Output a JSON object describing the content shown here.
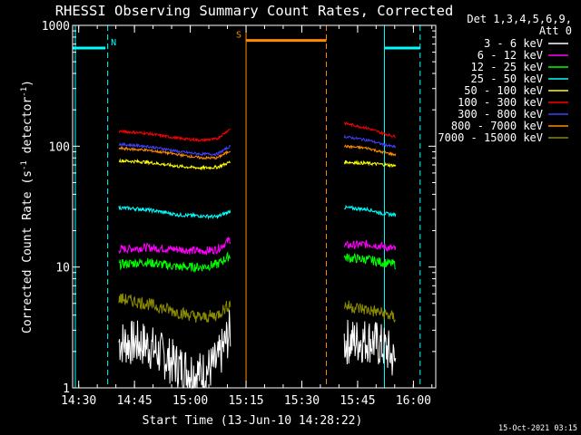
{
  "chart_data": {
    "type": "line",
    "title": "RHESSI Observing Summary Count Rates, Corrected",
    "xlabel": "Start Time (13-Jun-10 14:28:22)",
    "ylabel": "Corrected Count Rate (s⁻¹ detector⁻¹)",
    "ylabel_parts": {
      "pre": "Corrected Count Rate (s",
      "sup1": "-1",
      "mid": " detector",
      "sup2": "-1",
      "post": ")"
    },
    "yscale": "log",
    "xlim": [
      14.4728,
      16.1
    ],
    "ylim": [
      1,
      1000
    ],
    "xticks": [
      {
        "value": 14.5,
        "label": "14:30"
      },
      {
        "value": 14.75,
        "label": "14:45"
      },
      {
        "value": 15.0,
        "label": "15:00"
      },
      {
        "value": 15.25,
        "label": "15:15"
      },
      {
        "value": 15.5,
        "label": "15:30"
      },
      {
        "value": 15.75,
        "label": "15:45"
      },
      {
        "value": 16.0,
        "label": "16:00"
      }
    ],
    "yticks": [
      {
        "value": 1,
        "label": "1"
      },
      {
        "value": 10,
        "label": "10"
      },
      {
        "value": 100,
        "label": "100"
      },
      {
        "value": 1000,
        "label": "1000"
      }
    ],
    "legend_header": [
      "Det 1,3,4,5,6,9,",
      "Att 0"
    ],
    "legend_position": "right",
    "footer_timestamp": "15-Oct-2021 03:15",
    "series": [
      {
        "name": "3 - 6 keV",
        "color": "#ffffff",
        "segments": [
          {
            "x": [
              14.68,
              14.8,
              14.95,
              15.05,
              15.12,
              15.18
            ],
            "y": [
              2.4,
              2.3,
              1.5,
              1.3,
              1.6,
              3.0
            ]
          },
          {
            "x": [
              15.69,
              15.8,
              15.88,
              15.92
            ],
            "y": [
              2.4,
              2.5,
              2.1,
              1.6
            ]
          }
        ]
      },
      {
        "name": "6 - 12 keV",
        "color": "#ff00ff",
        "segments": [
          {
            "x": [
              14.68,
              14.8,
              14.95,
              15.05,
              15.12,
              15.18
            ],
            "y": [
              14.0,
              14.5,
              14.0,
              13.5,
              14.0,
              17.0
            ]
          },
          {
            "x": [
              15.69,
              15.8,
              15.85,
              15.92
            ],
            "y": [
              15.0,
              15.5,
              15.0,
              14.0
            ]
          }
        ]
      },
      {
        "name": "12 - 25 keV",
        "color": "#00ff00",
        "segments": [
          {
            "x": [
              14.68,
              14.8,
              14.95,
              15.05,
              15.12,
              15.18
            ],
            "y": [
              10.5,
              11.0,
              10.0,
              10.0,
              10.5,
              12.5
            ]
          },
          {
            "x": [
              15.69,
              15.8,
              15.85,
              15.92
            ],
            "y": [
              12.0,
              11.5,
              11.0,
              10.5
            ]
          }
        ]
      },
      {
        "name": "25 - 50 keV",
        "color": "#00ffff",
        "segments": [
          {
            "x": [
              14.68,
              14.8,
              14.9,
              14.95,
              15.05,
              15.12,
              15.18
            ],
            "y": [
              31.0,
              30.0,
              28.0,
              27.0,
              26.5,
              26.0,
              29.0
            ]
          },
          {
            "x": [
              15.69,
              15.8,
              15.85,
              15.92
            ],
            "y": [
              31.0,
              30.0,
              28.0,
              27.0
            ]
          }
        ]
      },
      {
        "name": "50 - 100 keV",
        "color": "#ffff00",
        "segments": [
          {
            "x": [
              14.68,
              14.8,
              14.9,
              14.95,
              15.05,
              15.12,
              15.18
            ],
            "y": [
              76.0,
              74.0,
              70.0,
              68.0,
              66.0,
              67.0,
              74.0
            ]
          },
          {
            "x": [
              15.69,
              15.8,
              15.85,
              15.92
            ],
            "y": [
              74.0,
              72.0,
              71.0,
              69.0
            ]
          }
        ]
      },
      {
        "name": "100 - 300 keV",
        "color": "#ff0000",
        "segments": [
          {
            "x": [
              14.68,
              14.8,
              14.9,
              14.95,
              15.05,
              15.12,
              15.18
            ],
            "y": [
              133.0,
              128.0,
              120.0,
              116.0,
              112.0,
              115.0,
              140.0
            ]
          },
          {
            "x": [
              15.69,
              15.8,
              15.85,
              15.92
            ],
            "y": [
              155.0,
              140.0,
              130.0,
              120.0
            ]
          }
        ]
      },
      {
        "name": "300 - 800 keV",
        "color": "#4040ff",
        "segments": [
          {
            "x": [
              14.68,
              14.8,
              14.9,
              14.95,
              15.05,
              15.12,
              15.18
            ],
            "y": [
              104.0,
              100.0,
              94.0,
              90.0,
              86.0,
              86.0,
              100.0
            ]
          },
          {
            "x": [
              15.69,
              15.8,
              15.85,
              15.92
            ],
            "y": [
              120.0,
              112.0,
              105.0,
              98.0
            ]
          }
        ]
      },
      {
        "name": "800 - 7000 keV",
        "color": "#ff8c00",
        "segments": [
          {
            "x": [
              14.68,
              14.8,
              14.9,
              14.95,
              15.05,
              15.12,
              15.18
            ],
            "y": [
              96.0,
              93.0,
              88.0,
              85.0,
              80.0,
              80.0,
              92.0
            ]
          },
          {
            "x": [
              15.69,
              15.8,
              15.85,
              15.92
            ],
            "y": [
              100.0,
              96.0,
              90.0,
              85.0
            ]
          }
        ]
      },
      {
        "name": "7000 - 15000 keV",
        "color": "#8b8b00",
        "segments": [
          {
            "x": [
              14.68,
              14.8,
              14.95,
              15.05,
              15.12,
              15.18
            ],
            "y": [
              5.5,
              5.0,
              4.2,
              3.8,
              4.0,
              5.0
            ]
          },
          {
            "x": [
              15.69,
              15.8,
              15.85,
              15.92
            ],
            "y": [
              4.8,
              4.4,
              4.2,
              3.8
            ]
          }
        ]
      }
    ],
    "flags": [
      {
        "label": "N",
        "color": "#00ffff",
        "y": 650,
        "x_start": 14.4728,
        "x_end": 14.62
      },
      {
        "label": "",
        "color": "#00ffff",
        "y": 650,
        "x_start": 15.87,
        "x_end": 16.03
      },
      {
        "label": "S",
        "color": "#ff8c00",
        "y": 750,
        "x_start": 15.25,
        "x_end": 15.61
      }
    ],
    "vertical_markers": [
      {
        "x": 14.485,
        "color": "#00ffff",
        "style": "solid"
      },
      {
        "x": 14.63,
        "color": "#00ffff",
        "style": "dashed"
      },
      {
        "x": 15.25,
        "color": "#ff8c00",
        "style": "solid"
      },
      {
        "x": 15.61,
        "color": "#ff8c00",
        "style": "dashed"
      },
      {
        "x": 15.87,
        "color": "#00ffff",
        "style": "solid"
      },
      {
        "x": 16.03,
        "color": "#00ffff",
        "style": "dashed"
      }
    ]
  }
}
